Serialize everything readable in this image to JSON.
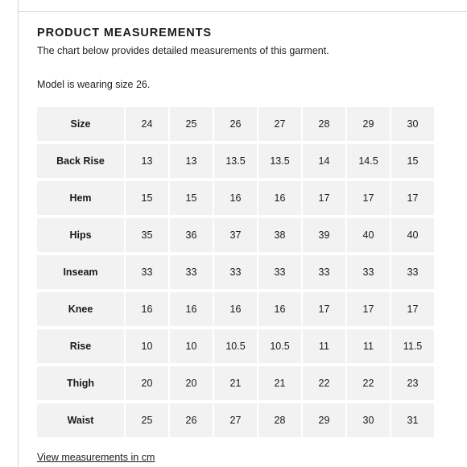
{
  "header": {
    "title": "PRODUCT MEASUREMENTS",
    "subtitle": "The chart below provides detailed measurements of this garment.",
    "model_note": "Model is wearing size 26."
  },
  "table": {
    "rows": [
      {
        "label": "Size",
        "values": [
          "24",
          "25",
          "26",
          "27",
          "28",
          "29",
          "30"
        ]
      },
      {
        "label": "Back Rise",
        "values": [
          "13",
          "13",
          "13.5",
          "13.5",
          "14",
          "14.5",
          "15"
        ]
      },
      {
        "label": "Hem",
        "values": [
          "15",
          "15",
          "16",
          "16",
          "17",
          "17",
          "17"
        ]
      },
      {
        "label": "Hips",
        "values": [
          "35",
          "36",
          "37",
          "38",
          "39",
          "40",
          "40"
        ]
      },
      {
        "label": "Inseam",
        "values": [
          "33",
          "33",
          "33",
          "33",
          "33",
          "33",
          "33"
        ]
      },
      {
        "label": "Knee",
        "values": [
          "16",
          "16",
          "16",
          "16",
          "17",
          "17",
          "17"
        ]
      },
      {
        "label": "Rise",
        "values": [
          "10",
          "10",
          "10.5",
          "10.5",
          "11",
          "11",
          "11.5"
        ]
      },
      {
        "label": "Thigh",
        "values": [
          "20",
          "20",
          "21",
          "21",
          "22",
          "22",
          "23"
        ]
      },
      {
        "label": "Waist",
        "values": [
          "25",
          "26",
          "27",
          "28",
          "29",
          "30",
          "31"
        ]
      }
    ]
  },
  "footer": {
    "link_label": "View measurements in cm"
  },
  "colors": {
    "cell_background": "#f2f2f2",
    "text": "#1a1a1a",
    "divider": "#d9d9d9"
  }
}
